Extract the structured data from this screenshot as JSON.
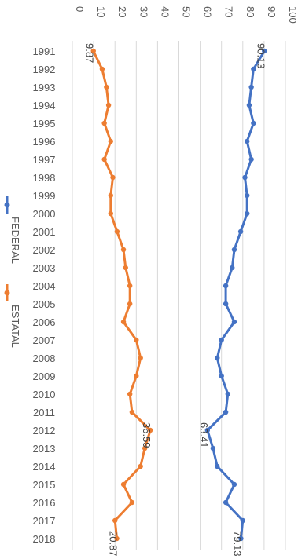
{
  "chart_data": {
    "type": "line",
    "orientation": "rotated-90-clockwise",
    "categories": [
      "1991",
      "1992",
      "1993",
      "1994",
      "1995",
      "1996",
      "1997",
      "1998",
      "1999",
      "2000",
      "2001",
      "2002",
      "2003",
      "2004",
      "2005",
      "2006",
      "2007",
      "2008",
      "2009",
      "2010",
      "2011",
      "2012",
      "2013",
      "2014",
      "2015",
      "2016",
      "2017",
      "2018"
    ],
    "ylim": [
      0,
      100
    ],
    "yticks": [
      "0",
      "10",
      "20",
      "30",
      "40",
      "50",
      "60",
      "70",
      "80",
      "90",
      "100"
    ],
    "grid": true,
    "legend_position": "left",
    "series": [
      {
        "name": "FEDERAL",
        "color": "#4472C4",
        "values": [
          90.13,
          85,
          84,
          83,
          85,
          82,
          84,
          81,
          82,
          82,
          79,
          76,
          75,
          72,
          72,
          76,
          70,
          68,
          70,
          73,
          72,
          63.41,
          66,
          68,
          76,
          72,
          80,
          79.13
        ]
      },
      {
        "name": "ESTATAL",
        "color": "#ED7D31",
        "values": [
          9.87,
          14,
          16,
          17,
          15,
          18,
          15,
          19,
          18,
          18,
          21,
          24,
          25,
          27,
          27,
          24,
          30,
          32,
          30,
          27,
          28,
          36.59,
          34,
          32,
          24,
          28,
          20,
          20.87
        ]
      }
    ],
    "data_labels": [
      {
        "series": 0,
        "index": 0,
        "text": "90.13"
      },
      {
        "series": 0,
        "index": 21,
        "text": "63.41"
      },
      {
        "series": 0,
        "index": 27,
        "text": "79.13"
      },
      {
        "series": 1,
        "index": 0,
        "text": "9.87"
      },
      {
        "series": 1,
        "index": 21,
        "text": "36.59"
      },
      {
        "series": 1,
        "index": 27,
        "text": "20.87"
      }
    ]
  }
}
